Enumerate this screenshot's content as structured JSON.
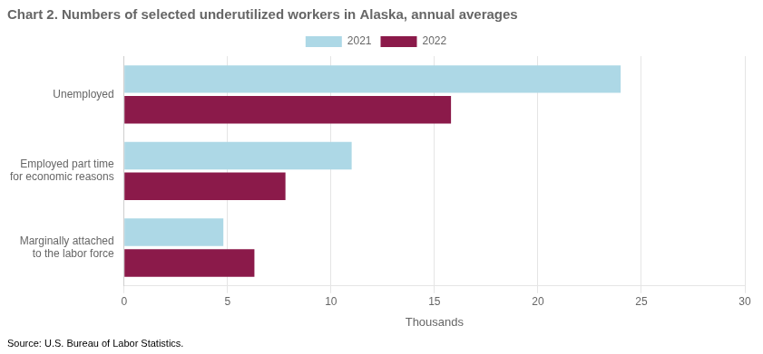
{
  "chart_data": {
    "type": "bar",
    "orientation": "horizontal",
    "title": "Chart 2. Numbers of selected underutilized workers in Alaska, annual averages",
    "categories": [
      "Unemployed",
      "Employed part time\nfor economic reasons",
      "Marginally attached\nto the labor force"
    ],
    "series": [
      {
        "name": "2021",
        "color": "#add8e6",
        "values": [
          24.0,
          11.0,
          4.8
        ]
      },
      {
        "name": "2022",
        "color": "#8b1a4a",
        "values": [
          15.8,
          7.8,
          6.3
        ]
      }
    ],
    "x_label": "Thousands",
    "xlim": [
      0,
      30
    ],
    "xticks": [
      0,
      5,
      10,
      15,
      20,
      25,
      30
    ],
    "grid": true,
    "legend": "top",
    "annotations": [
      "Source: U.S. Bureau of Labor Statistics."
    ]
  }
}
